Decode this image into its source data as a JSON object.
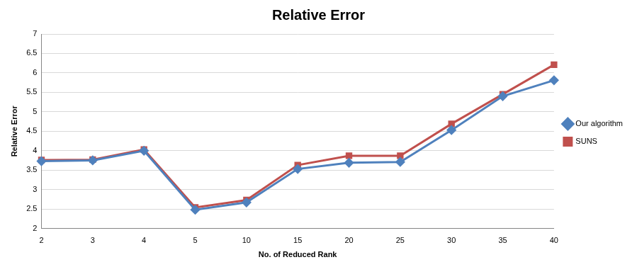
{
  "chart_data": {
    "type": "line",
    "title": "Relative Error",
    "x_label": "No. of Reduced Rank",
    "y_label": "Relative Error",
    "categories": [
      "2",
      "3",
      "4",
      "5",
      "10",
      "15",
      "20",
      "25",
      "30",
      "35",
      "40"
    ],
    "series": [
      {
        "name": "Our algorithm",
        "color": "#4f81bd",
        "marker": "diamond",
        "values": [
          3.73,
          3.75,
          4.0,
          2.48,
          2.67,
          3.53,
          3.69,
          3.71,
          4.53,
          5.4,
          5.81
        ]
      },
      {
        "name": "SUNS",
        "color": "#c0504d",
        "marker": "square",
        "values": [
          3.76,
          3.77,
          4.03,
          2.54,
          2.73,
          3.63,
          3.87,
          3.87,
          4.69,
          5.45,
          6.21
        ]
      }
    ],
    "ylim": [
      2,
      7
    ],
    "yticks": [
      2,
      2.5,
      3,
      3.5,
      4,
      4.5,
      5,
      5.5,
      6,
      6.5,
      7
    ],
    "grid": true,
    "legend": "right"
  }
}
